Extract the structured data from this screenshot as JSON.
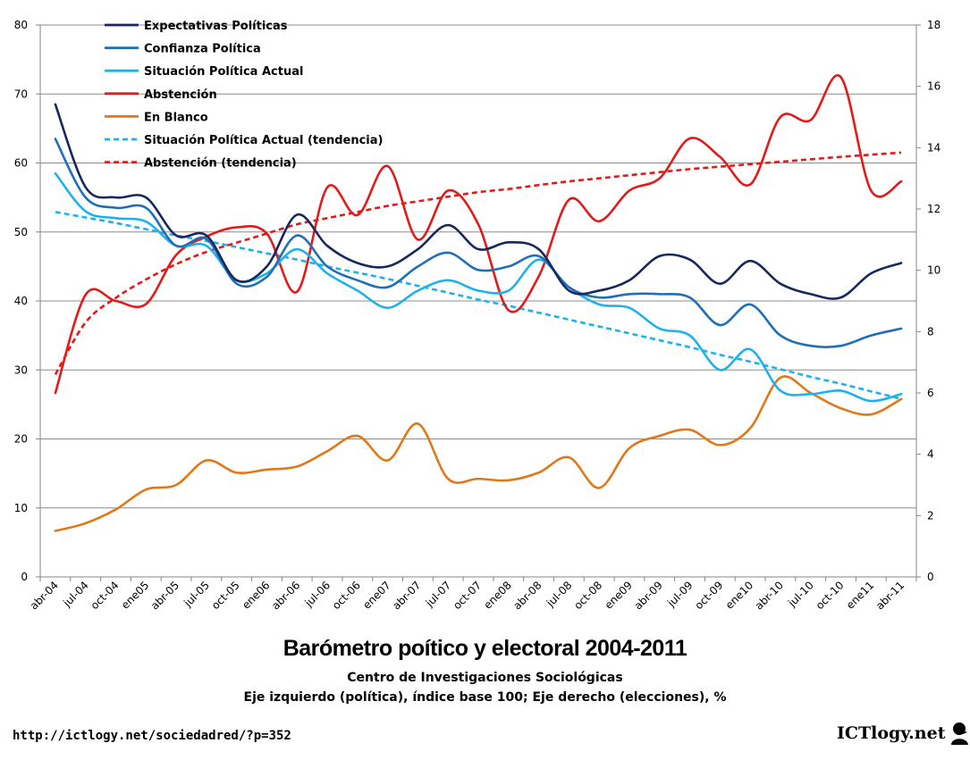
{
  "title": "Barómetro poítico y electoral 2004-2011",
  "subtitle": "Centro de Investigaciones Sociológicas",
  "axes_note": "Eje izquierdo (política), índice base 100;  Eje derecho (elecciones), %",
  "source_url": "http://ictlogy.net/sociedadred/?p=352",
  "brand": "ICTlogy.net",
  "chart_data": {
    "type": "line",
    "title": "Barómetro poítico y electoral 2004-2011",
    "categories": [
      "abr-04",
      "jul-04",
      "oct-04",
      "ene05",
      "abr-05",
      "jul-05",
      "oct-05",
      "ene06",
      "abr-06",
      "jul-06",
      "oct-06",
      "ene07",
      "abr-07",
      "jul-07",
      "oct-07",
      "ene08",
      "abr-08",
      "jul-08",
      "oct-08",
      "ene09",
      "abr-09",
      "jul-09",
      "oct-09",
      "ene10",
      "abr-10",
      "jul-10",
      "oct-10",
      "ene11",
      "abr-11"
    ],
    "y_left": {
      "ylim": [
        0,
        80
      ],
      "ticks": [
        0,
        10,
        20,
        30,
        40,
        50,
        60,
        70,
        80
      ]
    },
    "y_right": {
      "ylim": [
        0,
        18
      ],
      "ticks": [
        0,
        2,
        4,
        6,
        8,
        10,
        12,
        14,
        16,
        18
      ]
    },
    "grid": true,
    "legend_position": "top-left",
    "series": [
      {
        "name": "Expectativas Políticas",
        "axis": "left",
        "color": "#17285e",
        "dash": false,
        "values": [
          68.5,
          56.5,
          55,
          55,
          49.5,
          49.5,
          43,
          45,
          52.5,
          48,
          45.5,
          45,
          47.5,
          51,
          47.5,
          48.5,
          47.5,
          41.5,
          41.5,
          43,
          46.5,
          46,
          42.5,
          45.8,
          42.5,
          41,
          40.5,
          44,
          45.5
        ]
      },
      {
        "name": "Confianza Política",
        "axis": "left",
        "color": "#1f6fb7",
        "dash": false,
        "values": [
          63.5,
          55,
          53.5,
          53.5,
          48,
          49,
          42.5,
          43.5,
          49.5,
          45,
          43,
          42,
          45,
          47,
          44.5,
          45,
          46.5,
          42,
          40.5,
          41,
          41,
          40.5,
          36.5,
          39.5,
          35,
          33.5,
          33.5,
          35,
          36
        ]
      },
      {
        "name": "Situación Política Actual",
        "axis": "left",
        "color": "#1fb2ea",
        "dash": false,
        "values": [
          58.5,
          53,
          52,
          51.5,
          48,
          48,
          43,
          44,
          47.5,
          44,
          41.5,
          39,
          41.5,
          43,
          41.5,
          41.5,
          46,
          42,
          39.5,
          39,
          36,
          35,
          30,
          33,
          27,
          26.5,
          27,
          25.5,
          26.5
        ]
      },
      {
        "name": "Abstención",
        "axis": "right",
        "color": "#e21a1a",
        "dash": false,
        "values": [
          6,
          9.2,
          9,
          8.9,
          10.5,
          11.1,
          11.4,
          11.2,
          9.3,
          12.7,
          11.8,
          13.4,
          11,
          12.6,
          11.5,
          8.7,
          9.8,
          12.3,
          11.6,
          12.6,
          13,
          14.3,
          13.7,
          12.8,
          15,
          14.9,
          16.3,
          12.6,
          12.9
        ]
      },
      {
        "name": "En Blanco",
        "axis": "right",
        "color": "#e07818",
        "dash": false,
        "values": [
          1.5,
          1.75,
          2.2,
          2.85,
          3,
          3.8,
          3.4,
          3.5,
          3.6,
          4.1,
          4.6,
          3.8,
          5,
          3.2,
          3.2,
          3.15,
          3.4,
          3.9,
          2.9,
          4.2,
          4.6,
          4.8,
          4.3,
          4.85,
          6.5,
          6,
          5.5,
          5.3,
          5.8
        ]
      },
      {
        "name": "Situación Política Actual (tendencia)",
        "axis": "left",
        "color": "#1fb2ea",
        "dash": true,
        "values": [
          52.9,
          52.1,
          51.3,
          50.4,
          49.5,
          48.7,
          47.8,
          46.9,
          46,
          45,
          44.1,
          43.2,
          42.2,
          41.2,
          40.2,
          39.3,
          38.3,
          37.3,
          36.3,
          35.3,
          34.3,
          33.3,
          32.2,
          31.2,
          30.1,
          29,
          28,
          26.9,
          25.8
        ]
      },
      {
        "name": "Abstención (tendencia)",
        "axis": "right",
        "color": "#e21a1a",
        "dash": true,
        "values": [
          6.6,
          8.3,
          9.1,
          9.7,
          10.2,
          10.6,
          10.9,
          11.2,
          11.5,
          11.7,
          11.9,
          12.1,
          12.25,
          12.4,
          12.55,
          12.65,
          12.78,
          12.9,
          13,
          13.1,
          13.2,
          13.3,
          13.38,
          13.46,
          13.54,
          13.62,
          13.7,
          13.77,
          13.84
        ]
      }
    ]
  }
}
